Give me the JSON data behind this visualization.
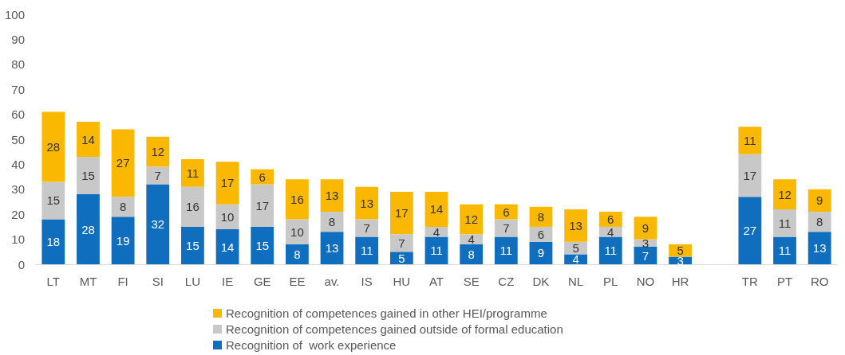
{
  "chart_data": {
    "type": "bar",
    "stacked": true,
    "categories": [
      "LT",
      "MT",
      "FI",
      "SI",
      "LU",
      "IE",
      "GE",
      "EE",
      "av.",
      "IS",
      "HU",
      "AT",
      "SE",
      "CZ",
      "DK",
      "NL",
      "PL",
      "NO",
      "HR",
      null,
      "TR",
      "PT",
      "RO"
    ],
    "series": [
      {
        "name": "Recognition of  work experience",
        "color": "#106ebe",
        "values": [
          18,
          28,
          19,
          32,
          15,
          14,
          15,
          8,
          13,
          11,
          5,
          11,
          8,
          11,
          9,
          4,
          11,
          7,
          3,
          null,
          27,
          11,
          13
        ]
      },
      {
        "name": "Recognition of competences gained outside of formal education",
        "color": "#c8c8c8",
        "values": [
          15,
          15,
          8,
          7,
          16,
          10,
          17,
          10,
          8,
          7,
          7,
          4,
          4,
          7,
          6,
          5,
          4,
          3,
          null,
          null,
          17,
          11,
          8
        ]
      },
      {
        "name": "Recognition of competences gained in other HEI/programme",
        "color": "#fbb800",
        "values": [
          28,
          14,
          27,
          12,
          11,
          17,
          6,
          16,
          13,
          13,
          17,
          14,
          12,
          6,
          8,
          13,
          6,
          9,
          5,
          null,
          11,
          12,
          9
        ]
      }
    ],
    "ylim": [
      0,
      100
    ],
    "yticks": [
      0,
      10,
      20,
      30,
      40,
      50,
      60,
      70,
      80,
      90,
      100
    ],
    "grid": false,
    "legend": "bottom",
    "data_labels": true
  }
}
